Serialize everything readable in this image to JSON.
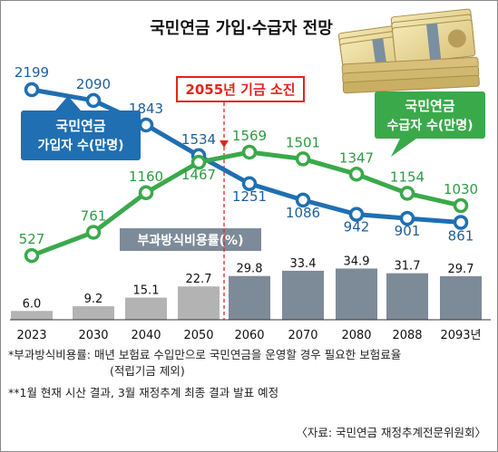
{
  "chart_data": {
    "type": "line",
    "title": "국민연금 가입·수급자 전망",
    "categories": [
      "2023",
      "2030",
      "2040",
      "2050",
      "2060",
      "2070",
      "2080",
      "2088",
      "2093년"
    ],
    "series": [
      {
        "name": "국민연금 가입자 수(만명)",
        "label_lines": [
          "국민연금",
          "가입자 수(만명)"
        ],
        "color": "#1f6fb2",
        "values": [
          2199,
          2090,
          1843,
          1534,
          1251,
          1086,
          942,
          901,
          861
        ],
        "value_labels": [
          "2199",
          "2090",
          "1843",
          "1534",
          "1251",
          "1086",
          "942",
          "901",
          "861"
        ]
      },
      {
        "name": "국민연금 수급자 수(만명)",
        "label_lines": [
          "국민연금",
          "수급자 수(만명)"
        ],
        "color": "#3aa94a",
        "values": [
          527,
          761,
          1160,
          1467,
          1569,
          1501,
          1347,
          1154,
          1030
        ],
        "value_labels": [
          "527",
          "761",
          "1160",
          "1467",
          "1569",
          "1501",
          "1347",
          "1154",
          "1030"
        ]
      }
    ],
    "bars": {
      "name": "부과방식비용률(%)",
      "values": [
        6.0,
        9.2,
        15.1,
        22.7,
        29.8,
        33.4,
        34.9,
        31.7,
        29.7
      ],
      "value_labels": [
        "6.0",
        "9.2",
        "15.1",
        "22.7",
        "29.8",
        "33.4",
        "34.9",
        "31.7",
        "29.7"
      ],
      "color_before": "#b3b3b3",
      "color_after": "#7d8b99"
    },
    "annotation": {
      "text": "2055년 기금 소진",
      "color": "#e0251b"
    },
    "grid": false
  },
  "notes": {
    "line1": "*부과방식비용률: 매년 보험료 수입만으로 국민연금을 운영할 경우 필요한 보험료율",
    "line2": "(적립기금 제외)",
    "line3": "**1월 현재 시산 결과, 3월 재정추계 최종 결과 발표 예정",
    "source": "〈자료: 국민연금 재정추계전문위원회〉"
  }
}
